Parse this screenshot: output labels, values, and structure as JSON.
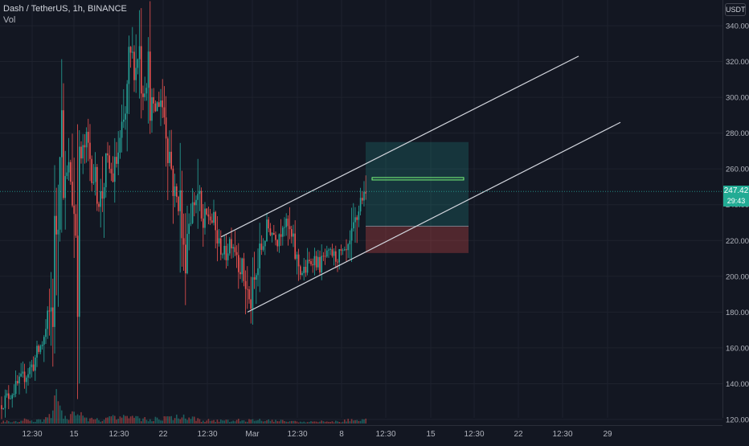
{
  "symbol": {
    "title": "Dash / TetherUS, 1h, BINANCE",
    "volume_label": "Vol",
    "currency": "USDT"
  },
  "last_price": {
    "value": "247.42",
    "countdown": "29:43",
    "color": "#22ab94"
  },
  "colors": {
    "background": "#131722",
    "grid": "#1e222d",
    "up": "#26a69a",
    "down": "#ef5350",
    "trendline": "#d1d4dc",
    "target_zone": "#26a69a",
    "stop_zone": "#ef5350",
    "target_line": "#7cfc7c"
  },
  "chart_data": {
    "type": "candlestick",
    "title": "Dash / TetherUS, 1h, BINANCE",
    "y_ticks": [
      "340.00",
      "320.00",
      "300.00",
      "280.00",
      "260.00",
      "240.00",
      "220.00",
      "200.00",
      "180.00",
      "160.00",
      "140.00",
      "120.00"
    ],
    "ylim": [
      118,
      344
    ],
    "x_ticks": [
      "12:30",
      "15",
      "12:30",
      "22",
      "12:30",
      "Mar",
      "12:30",
      "8",
      "12:30",
      "15",
      "12:30",
      "22",
      "12:30",
      "29"
    ],
    "price_path": [
      [
        0,
        128
      ],
      [
        20,
        138
      ],
      [
        40,
        150
      ],
      [
        55,
        165
      ],
      [
        65,
        185
      ],
      [
        72,
        250
      ],
      [
        76,
        290
      ],
      [
        80,
        245
      ],
      [
        85,
        260
      ],
      [
        90,
        250
      ],
      [
        96,
        215
      ],
      [
        100,
        265
      ],
      [
        108,
        275
      ],
      [
        115,
        260
      ],
      [
        125,
        240
      ],
      [
        132,
        265
      ],
      [
        140,
        255
      ],
      [
        148,
        270
      ],
      [
        153,
        280
      ],
      [
        158,
        295
      ],
      [
        163,
        325
      ],
      [
        168,
        312
      ],
      [
        173,
        330
      ],
      [
        178,
        305
      ],
      [
        185,
        315
      ],
      [
        190,
        290
      ],
      [
        200,
        300
      ],
      [
        207,
        285
      ],
      [
        212,
        265
      ],
      [
        218,
        245
      ],
      [
        224,
        240
      ],
      [
        229,
        210
      ],
      [
        234,
        230
      ],
      [
        240,
        240
      ],
      [
        246,
        245
      ],
      [
        252,
        225
      ],
      [
        258,
        235
      ],
      [
        265,
        230
      ],
      [
        272,
        218
      ],
      [
        280,
        212
      ],
      [
        287,
        222
      ],
      [
        294,
        215
      ],
      [
        300,
        205
      ],
      [
        306,
        195
      ],
      [
        311,
        184
      ],
      [
        318,
        198
      ],
      [
        325,
        215
      ],
      [
        332,
        228
      ],
      [
        338,
        225
      ],
      [
        345,
        222
      ],
      [
        352,
        230
      ],
      [
        358,
        227
      ],
      [
        364,
        218
      ],
      [
        370,
        208
      ],
      [
        377,
        201
      ],
      [
        384,
        207
      ],
      [
        391,
        210
      ],
      [
        398,
        206
      ],
      [
        405,
        211
      ],
      [
        412,
        213
      ],
      [
        418,
        210
      ],
      [
        424,
        213
      ],
      [
        430,
        212
      ],
      [
        436,
        216
      ],
      [
        441,
        225
      ],
      [
        446,
        238
      ],
      [
        450,
        245
      ],
      [
        454,
        243
      ],
      [
        457,
        247.42
      ]
    ],
    "volume_path": [
      [
        15,
        3
      ],
      [
        35,
        6
      ],
      [
        50,
        4
      ],
      [
        62,
        10
      ],
      [
        70,
        40
      ],
      [
        74,
        20
      ],
      [
        80,
        8
      ],
      [
        96,
        14
      ],
      [
        110,
        6
      ],
      [
        130,
        5
      ],
      [
        152,
        12
      ],
      [
        165,
        8
      ],
      [
        185,
        6
      ],
      [
        205,
        7
      ],
      [
        225,
        10
      ],
      [
        250,
        5
      ],
      [
        280,
        4
      ],
      [
        310,
        5
      ],
      [
        345,
        4
      ],
      [
        380,
        3
      ],
      [
        420,
        3
      ],
      [
        446,
        6
      ],
      [
        457,
        8
      ]
    ],
    "drawings": {
      "upper_channel_line": {
        "from": [
          275,
          222
        ],
        "to": [
          720,
          323
        ]
      },
      "lower_channel_line": {
        "from": [
          308,
          180
        ],
        "to": [
          772,
          286
        ]
      },
      "long_position": {
        "x_range": [
          455,
          583
        ],
        "target_top": 275,
        "entry": 228,
        "stop": 213,
        "target_line": 254.5,
        "target_line_x": [
          463,
          577
        ]
      }
    }
  }
}
